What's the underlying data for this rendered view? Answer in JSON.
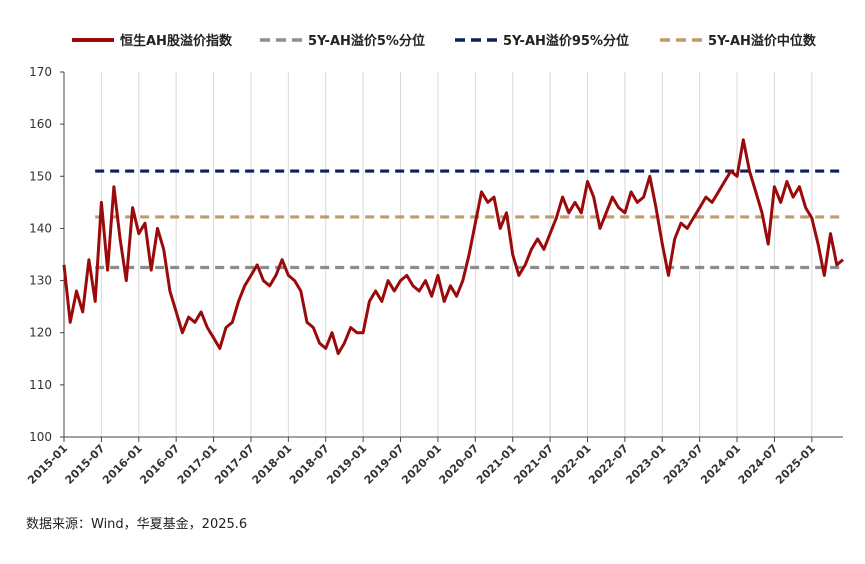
{
  "chart_data": {
    "type": "line",
    "title": "",
    "xlabel": "",
    "ylabel": "",
    "ylim": [
      100,
      170
    ],
    "yticks": [
      "170",
      "160",
      "150",
      "140",
      "130",
      "120",
      "110",
      "100"
    ],
    "xticks": [
      "2015-01",
      "2015-07",
      "2016-01",
      "2016-07",
      "2017-01",
      "2017-07",
      "2018-01",
      "2018-07",
      "2019-01",
      "2019-07",
      "2020-01",
      "2020-07",
      "2021-01",
      "2021-07",
      "2022-01",
      "2022-07",
      "2023-01",
      "2023-07",
      "2024-01",
      "2024-07",
      "2025-01"
    ],
    "grid": "vertical",
    "legend_position": "top",
    "series": [
      {
        "name": "恒生AH股溢价指数",
        "style": "solid",
        "color": "#9b0a0a",
        "x": [
          "2015-01",
          "2015-02",
          "2015-03",
          "2015-04",
          "2015-05",
          "2015-06",
          "2015-07",
          "2015-08",
          "2015-09",
          "2015-10",
          "2015-11",
          "2015-12",
          "2016-01",
          "2016-02",
          "2016-03",
          "2016-04",
          "2016-05",
          "2016-06",
          "2016-07",
          "2016-08",
          "2016-09",
          "2016-10",
          "2016-11",
          "2016-12",
          "2017-01",
          "2017-02",
          "2017-03",
          "2017-04",
          "2017-05",
          "2017-06",
          "2017-07",
          "2017-08",
          "2017-09",
          "2017-10",
          "2017-11",
          "2017-12",
          "2018-01",
          "2018-02",
          "2018-03",
          "2018-04",
          "2018-05",
          "2018-06",
          "2018-07",
          "2018-08",
          "2018-09",
          "2018-10",
          "2018-11",
          "2018-12",
          "2019-01",
          "2019-02",
          "2019-03",
          "2019-04",
          "2019-05",
          "2019-06",
          "2019-07",
          "2019-08",
          "2019-09",
          "2019-10",
          "2019-11",
          "2019-12",
          "2020-01",
          "2020-02",
          "2020-03",
          "2020-04",
          "2020-05",
          "2020-06",
          "2020-07",
          "2020-08",
          "2020-09",
          "2020-10",
          "2020-11",
          "2020-12",
          "2021-01",
          "2021-02",
          "2021-03",
          "2021-04",
          "2021-05",
          "2021-06",
          "2021-07",
          "2021-08",
          "2021-09",
          "2021-10",
          "2021-11",
          "2021-12",
          "2022-01",
          "2022-02",
          "2022-03",
          "2022-04",
          "2022-05",
          "2022-06",
          "2022-07",
          "2022-08",
          "2022-09",
          "2022-10",
          "2022-11",
          "2022-12",
          "2023-01",
          "2023-02",
          "2023-03",
          "2023-04",
          "2023-05",
          "2023-06",
          "2023-07",
          "2023-08",
          "2023-09",
          "2023-10",
          "2023-11",
          "2023-12",
          "2024-01",
          "2024-02",
          "2024-03",
          "2024-04",
          "2024-05",
          "2024-06",
          "2024-07",
          "2024-08",
          "2024-09",
          "2024-10",
          "2024-11",
          "2024-12",
          "2025-01",
          "2025-02",
          "2025-03",
          "2025-04",
          "2025-05",
          "2025-06"
        ],
        "values": [
          133,
          122,
          128,
          124,
          134,
          126,
          145,
          132,
          148,
          138,
          130,
          144,
          139,
          141,
          132,
          140,
          136,
          128,
          124,
          120,
          123,
          122,
          124,
          121,
          119,
          117,
          121,
          122,
          126,
          129,
          131,
          133,
          130,
          129,
          131,
          134,
          131,
          130,
          128,
          122,
          121,
          118,
          117,
          120,
          116,
          118,
          121,
          120,
          120,
          126,
          128,
          126,
          130,
          128,
          130,
          131,
          129,
          128,
          130,
          127,
          131,
          126,
          129,
          127,
          130,
          135,
          141,
          147,
          145,
          146,
          140,
          143,
          135,
          131,
          133,
          136,
          138,
          136,
          139,
          142,
          146,
          143,
          145,
          143,
          149,
          146,
          140,
          143,
          146,
          144,
          143,
          147,
          145,
          146,
          150,
          144,
          137,
          131,
          138,
          141,
          140,
          142,
          144,
          146,
          145,
          147,
          149,
          151,
          150,
          157,
          151,
          147,
          143,
          137,
          148,
          145,
          149,
          146,
          148,
          144,
          142,
          137,
          131,
          139,
          133,
          134
        ]
      },
      {
        "name": "5Y-AH溢价5%分位",
        "style": "dashed",
        "color": "#8c8c8c",
        "value": 132.5
      },
      {
        "name": "5Y-AH溢价95%分位",
        "style": "dashed",
        "color": "#0d1f5c",
        "value": 151
      },
      {
        "name": "5Y-AH溢价中位数",
        "style": "dashed",
        "color": "#bf9a6a",
        "value": 142.2
      }
    ]
  },
  "source_note": "数据来源：Wind，华夏基金，2025.6"
}
